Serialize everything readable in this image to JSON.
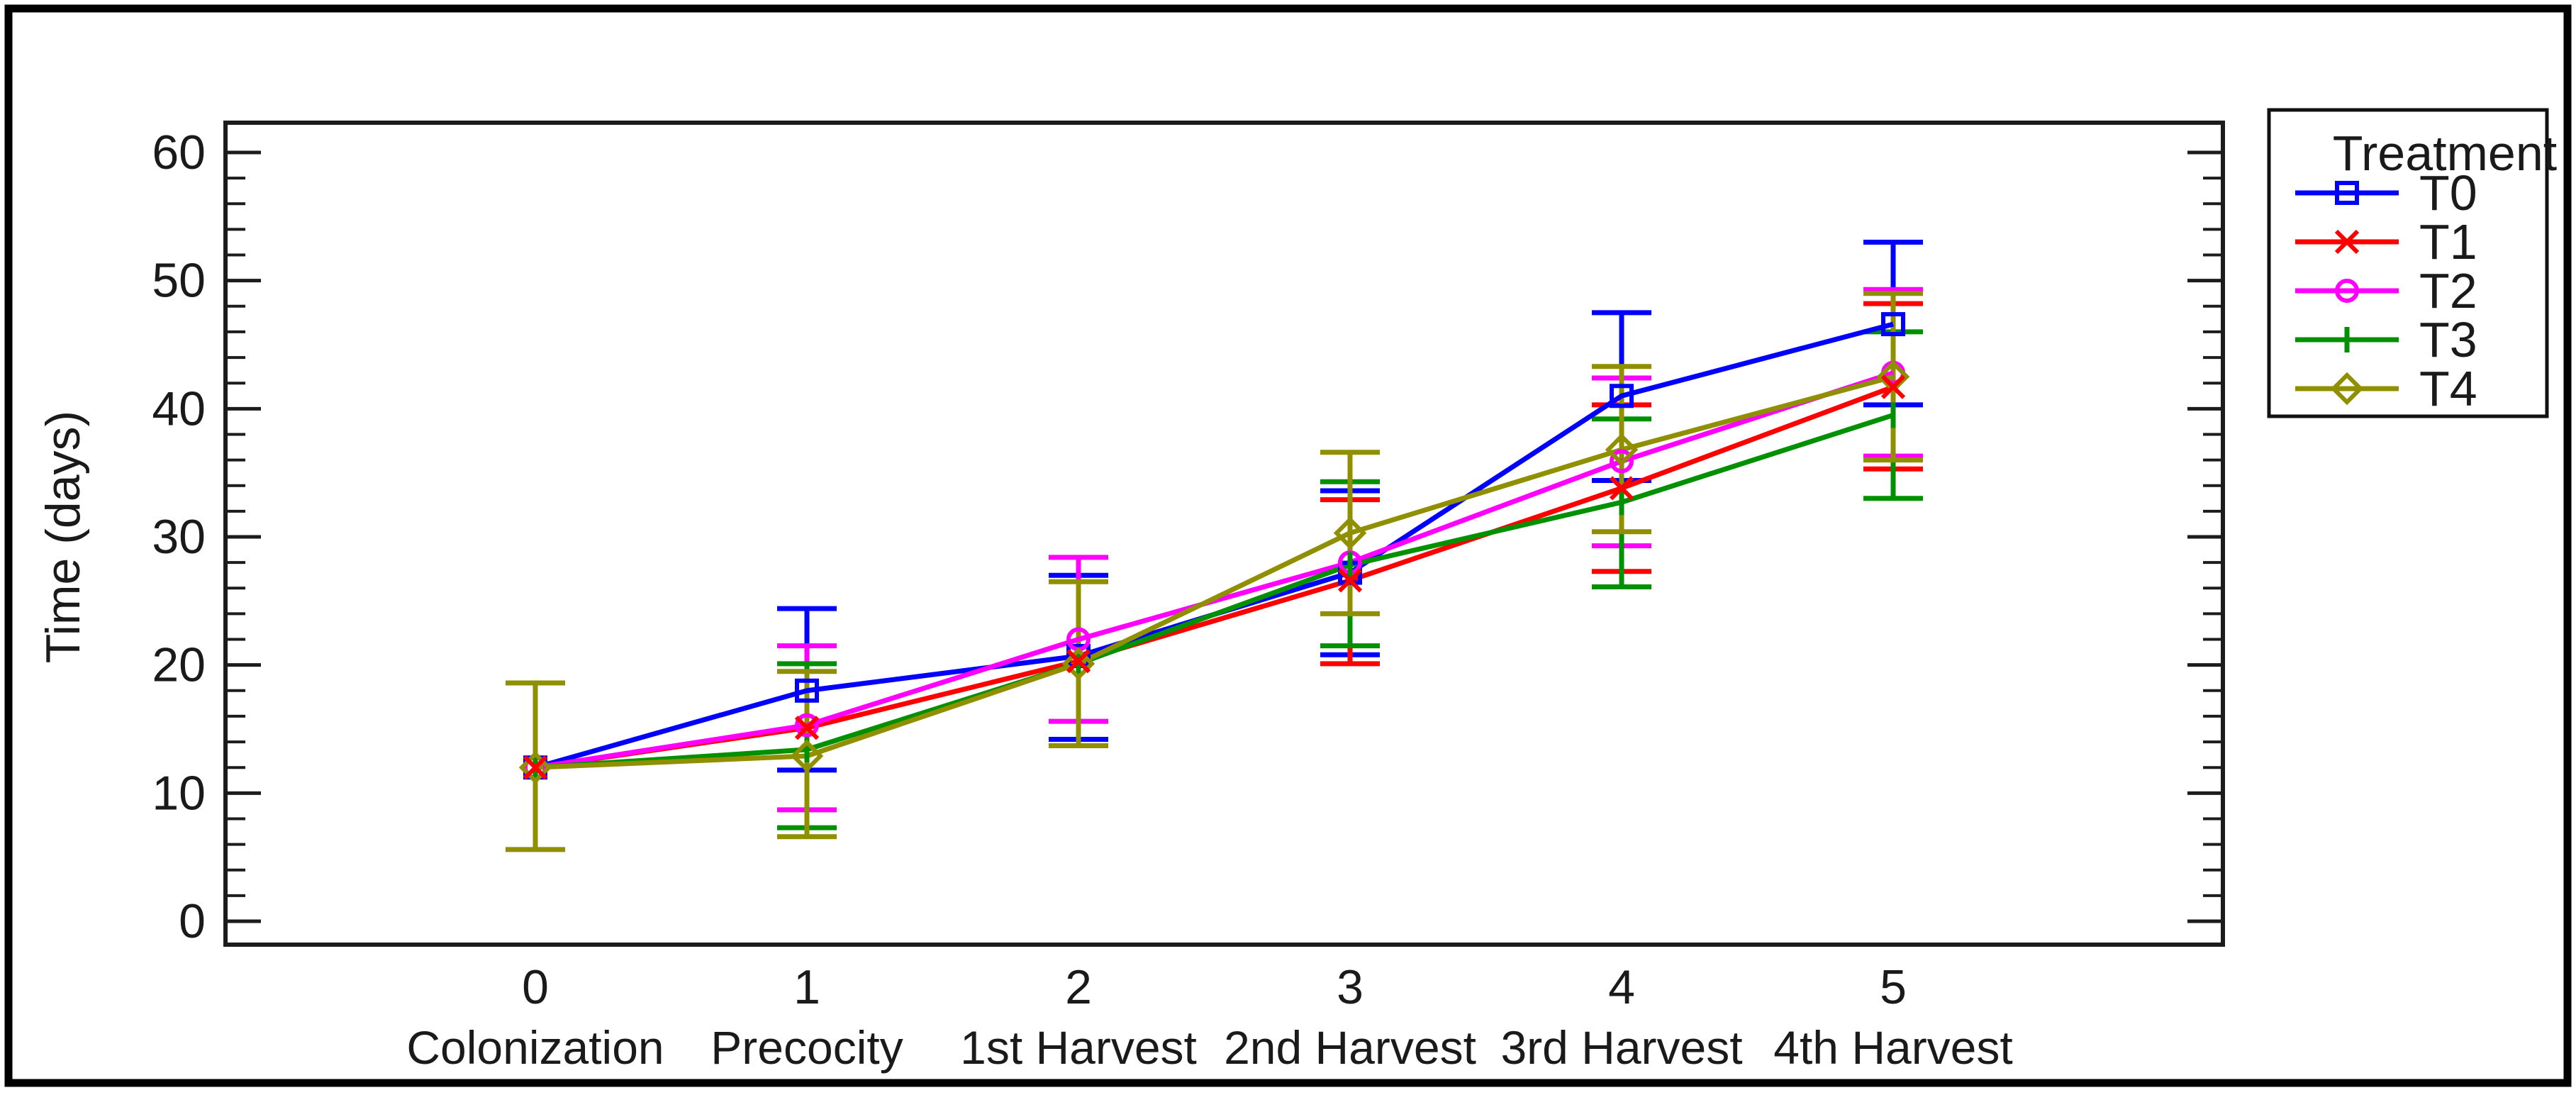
{
  "colors": {
    "background": "#ffffff",
    "outer_border": "#000000",
    "frame": "#1c1c1c",
    "text": "#1a1a1a",
    "t0_blue": "#0000ff",
    "t1_red": "#ff0000",
    "t2_magenta": "#ff00ff",
    "t3_green": "#009000",
    "t4_olive": "#8f8f00"
  },
  "chart_data": {
    "type": "line",
    "title": "",
    "xlabel": "",
    "ylabel": "Time (days)",
    "ylim": [
      0,
      60
    ],
    "ytick_labels": [
      "0",
      "10",
      "20",
      "30",
      "40",
      "50",
      "60"
    ],
    "y_minor_step": 2,
    "grid": false,
    "x": [
      0,
      1,
      2,
      3,
      4,
      5
    ],
    "xtick_labels": [
      "0",
      "1",
      "2",
      "3",
      "4",
      "5"
    ],
    "categories": [
      "Colonization",
      "Precocity",
      "1st Harvest",
      "2nd Harvest",
      "3rd Harvest",
      "4th Harvest"
    ],
    "legend": {
      "title": "Treatment",
      "position": "outside-right-top",
      "entries": [
        "T0",
        "T1",
        "T2",
        "T3",
        "T4"
      ]
    },
    "series": [
      {
        "name": "T0",
        "color": "#0000ff",
        "marker": "square",
        "values": [
          12.0,
          18.0,
          20.7,
          27.2,
          41.0,
          46.6
        ],
        "err_lo": [
          null,
          11.8,
          14.2,
          20.8,
          34.4,
          40.3
        ],
        "err_hi": [
          null,
          24.4,
          27.0,
          33.6,
          47.5,
          53.0
        ]
      },
      {
        "name": "T1",
        "color": "#ff0000",
        "marker": "x",
        "values": [
          12.0,
          15.1,
          20.3,
          26.6,
          33.8,
          41.7
        ],
        "err_lo": [
          null,
          null,
          null,
          20.1,
          27.3,
          35.3
        ],
        "err_hi": [
          null,
          null,
          null,
          32.9,
          40.3,
          48.2
        ]
      },
      {
        "name": "T2",
        "color": "#ff00ff",
        "marker": "circle",
        "values": [
          12.0,
          15.3,
          22.0,
          28.0,
          35.9,
          42.8
        ],
        "err_lo": [
          null,
          8.7,
          15.6,
          null,
          29.3,
          36.3
        ],
        "err_hi": [
          null,
          21.5,
          28.4,
          null,
          42.4,
          49.3
        ]
      },
      {
        "name": "T3",
        "color": "#009000",
        "marker": "tick",
        "values": [
          12.0,
          13.4,
          20.1,
          27.8,
          32.7,
          39.5
        ],
        "err_lo": [
          null,
          7.3,
          null,
          21.5,
          26.1,
          33.0
        ],
        "err_hi": [
          null,
          20.1,
          null,
          34.3,
          39.2,
          46.0
        ]
      },
      {
        "name": "T4",
        "color": "#8f8f00",
        "marker": "diamond",
        "values": [
          12.0,
          12.9,
          20.1,
          30.3,
          36.8,
          42.5
        ],
        "err_lo": [
          5.6,
          6.6,
          13.7,
          24.0,
          30.4,
          36.0
        ],
        "err_hi": [
          18.6,
          19.5,
          26.5,
          36.6,
          43.3,
          49.0
        ]
      }
    ]
  }
}
